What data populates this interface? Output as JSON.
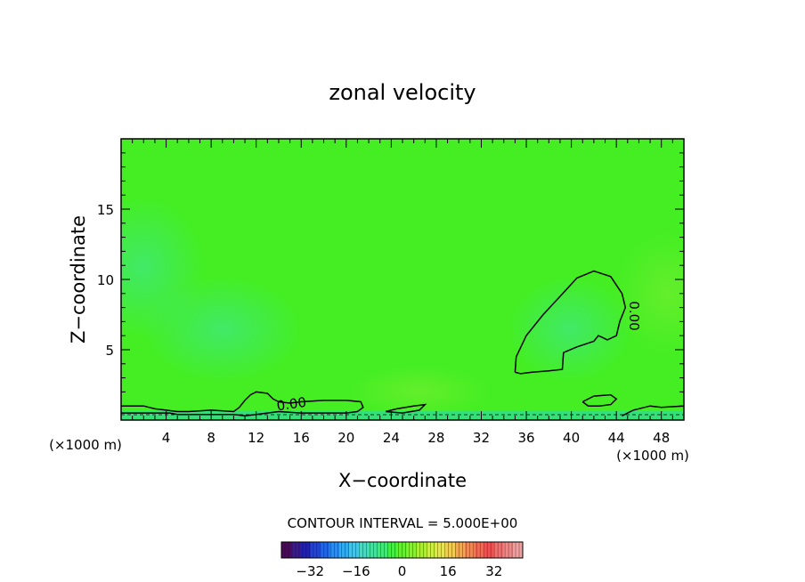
{
  "chart_data": {
    "type": "contour",
    "title": "zonal velocity",
    "xlabel": "X−coordinate",
    "ylabel": "Z−coordinate",
    "x_unit_label": "(×1000 m)",
    "y_unit_label": "(×1000 m)",
    "xlim": [
      0,
      50
    ],
    "ylim": [
      0,
      20
    ],
    "x_ticks": [
      4,
      8,
      12,
      16,
      20,
      24,
      28,
      32,
      36,
      40,
      44,
      48
    ],
    "y_ticks": [
      5,
      10,
      15
    ],
    "contour_label": "0.00",
    "contour_interval_text": "CONTOUR INTERVAL = 5.000E+00",
    "contour_interval": 5.0,
    "field_fill_color": "#44ee22",
    "contours": [
      {
        "level": 0,
        "points": [
          [
            35,
            3.4
          ],
          [
            35.1,
            4.5
          ],
          [
            36,
            6
          ],
          [
            37.5,
            7.5
          ],
          [
            39,
            8.8
          ],
          [
            40.5,
            10.1
          ],
          [
            42,
            10.6
          ],
          [
            43.5,
            10.2
          ],
          [
            44.5,
            9
          ],
          [
            44.8,
            8
          ],
          [
            44.3,
            7
          ],
          [
            44,
            6
          ],
          [
            43.2,
            5.7
          ],
          [
            42.7,
            5.9
          ],
          [
            42.4,
            6
          ],
          [
            42,
            5.6
          ],
          [
            40.5,
            5.2
          ],
          [
            39.3,
            4.8
          ],
          [
            39.2,
            3.6
          ],
          [
            38,
            3.5
          ],
          [
            36.5,
            3.4
          ],
          [
            35.5,
            3.3
          ],
          [
            35,
            3.4
          ]
        ]
      },
      {
        "level": 0,
        "points": [
          [
            0,
            1
          ],
          [
            2,
            1
          ],
          [
            3,
            0.8
          ],
          [
            4,
            0.7
          ],
          [
            5,
            0.6
          ],
          [
            6,
            0.6
          ],
          [
            8,
            0.7
          ],
          [
            10,
            0.6
          ],
          [
            10.5,
            0.9
          ],
          [
            11,
            1.4
          ],
          [
            11.5,
            1.8
          ],
          [
            12,
            2
          ],
          [
            13,
            1.9
          ],
          [
            13.5,
            1.5
          ],
          [
            14,
            1.3
          ],
          [
            15,
            1.2
          ],
          [
            16,
            1.3
          ],
          [
            18,
            1.4
          ],
          [
            20,
            1.4
          ],
          [
            21.3,
            1.3
          ],
          [
            21.5,
            0.9
          ],
          [
            21,
            0.6
          ],
          [
            20,
            0.5
          ],
          [
            18,
            0.5
          ],
          [
            16,
            0.5
          ],
          [
            14,
            0.6
          ],
          [
            12,
            0.4
          ],
          [
            11,
            0.3
          ],
          [
            10,
            0.4
          ],
          [
            8,
            0.4
          ],
          [
            5,
            0.4
          ],
          [
            4.3,
            0.5
          ],
          [
            3,
            0.5
          ],
          [
            2,
            0.5
          ],
          [
            0,
            0.5
          ]
        ]
      },
      {
        "level": 0,
        "points": [
          [
            23.5,
            0.6
          ],
          [
            24.5,
            0.8
          ],
          [
            26,
            1
          ],
          [
            27,
            1.1
          ],
          [
            26.5,
            0.7
          ],
          [
            25,
            0.5
          ],
          [
            23.5,
            0.6
          ]
        ]
      },
      {
        "level": 0,
        "points": [
          [
            41,
            1.3
          ],
          [
            42,
            1.7
          ],
          [
            43.5,
            1.8
          ],
          [
            44,
            1.5
          ],
          [
            43.5,
            1.1
          ],
          [
            42.5,
            1
          ],
          [
            41.5,
            1
          ],
          [
            41,
            1.3
          ]
        ]
      },
      {
        "level": 0,
        "points": [
          [
            44.5,
            0.3
          ],
          [
            45.5,
            0.7
          ],
          [
            47,
            1
          ],
          [
            48,
            0.9
          ],
          [
            50,
            1
          ]
        ]
      }
    ],
    "colorbar": {
      "ticks": [
        -32,
        -16,
        0,
        16,
        32
      ],
      "min": -42,
      "max": 42,
      "colors": [
        "#4a0a5a",
        "#3a1b8a",
        "#2222b0",
        "#2244d0",
        "#2266e8",
        "#2c8cf0",
        "#34aaee",
        "#44c4e8",
        "#4cd8c0",
        "#44e0a0",
        "#44e878",
        "#44ee44",
        "#66ee33",
        "#88ee33",
        "#aaee33",
        "#ccee44",
        "#e4e455",
        "#f0cc55",
        "#f0a855",
        "#f08855",
        "#f06a55",
        "#f05050",
        "#f07070",
        "#f08888",
        "#f0a0a0"
      ]
    }
  }
}
